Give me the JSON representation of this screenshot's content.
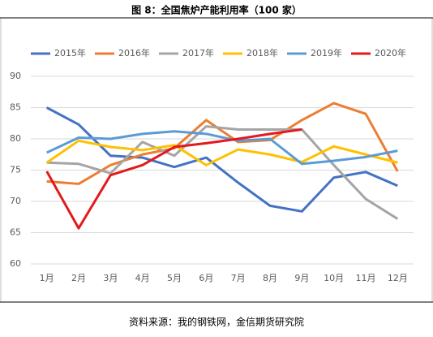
{
  "chart_data": {
    "type": "line",
    "title": "图 8：全国焦炉产能利用率（100 家）",
    "source": "资料来源：我的钢铁网，金信期货研究院",
    "categories": [
      "1月",
      "2月",
      "3月",
      "4月",
      "5月",
      "6月",
      "7月",
      "8月",
      "9月",
      "10月",
      "11月",
      "12月"
    ],
    "series": [
      {
        "name": "2015年",
        "color": "#4472c4",
        "values": [
          85,
          82.3,
          77.3,
          77,
          75.5,
          77,
          73,
          69.3,
          68.4,
          73.8,
          74.7,
          72.5
        ]
      },
      {
        "name": "2016年",
        "color": "#ed7d31",
        "values": [
          73.2,
          72.8,
          75.8,
          77.5,
          78.5,
          83,
          79.5,
          79.8,
          83,
          85.7,
          84,
          74.8
        ]
      },
      {
        "name": "2017年",
        "color": "#a5a5a5",
        "values": [
          76.2,
          76,
          74.5,
          79.5,
          77.3,
          82,
          81.5,
          81.5,
          81.5,
          75.8,
          70.4,
          67.2
        ]
      },
      {
        "name": "2018年",
        "color": "#ffc000",
        "values": [
          76.2,
          79.7,
          78.7,
          78.2,
          79,
          75.8,
          78.3,
          77.5,
          76.3,
          78.8,
          77.5,
          76.2
        ]
      },
      {
        "name": "2019年",
        "color": "#5b9bd5",
        "values": [
          77.8,
          80.2,
          80,
          80.8,
          81.2,
          80.8,
          79.7,
          80,
          76,
          76.5,
          77.1,
          78.1
        ]
      },
      {
        "name": "2020年",
        "color": "#e31a1c",
        "values": [
          74.8,
          65.7,
          74.2,
          75.8,
          78.7,
          79.3,
          80,
          80.8,
          81.5,
          null,
          null,
          null
        ]
      }
    ],
    "ylim": [
      60,
      90
    ],
    "yticks": [
      60,
      65,
      70,
      75,
      80,
      85,
      90
    ],
    "grid": true
  }
}
